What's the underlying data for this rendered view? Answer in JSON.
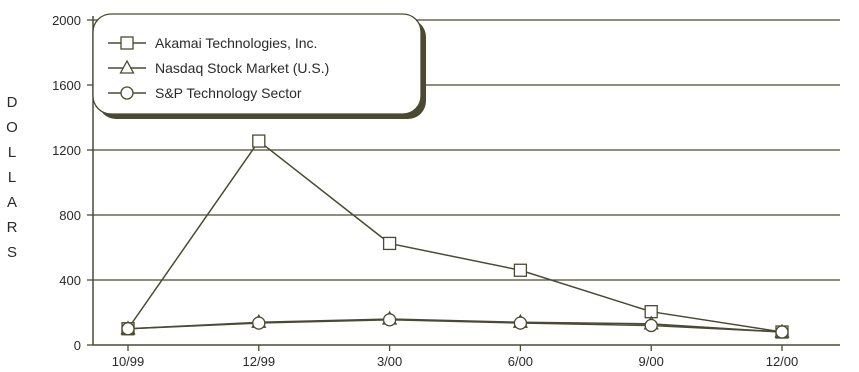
{
  "chart_data": {
    "type": "line",
    "title": "",
    "xlabel": "",
    "ylabel": "DOLLARS",
    "categories": [
      "10/99",
      "12/99",
      "3/00",
      "6/00",
      "9/00",
      "12/00"
    ],
    "ylim": [
      0,
      2000
    ],
    "yticks": [
      "0",
      "400",
      "800",
      "1200",
      "1600",
      "2000"
    ],
    "grid": "horizontal",
    "legend_position": "top-left",
    "series": [
      {
        "name": "Akamai Technologies, Inc.",
        "marker": "square",
        "values": [
          100,
          1255,
          625,
          460,
          205,
          80
        ]
      },
      {
        "name": "Nasdaq Stock Market (U.S.)",
        "marker": "triangle",
        "values": [
          100,
          140,
          160,
          140,
          130,
          80
        ]
      },
      {
        "name": "S&P Technology Sector",
        "marker": "circle",
        "values": [
          100,
          135,
          155,
          135,
          120,
          80
        ]
      }
    ],
    "colors": {
      "line": "#4a4a32",
      "grid": "#4a4a32",
      "text": "#2a2a2a",
      "marker_fill": "#ffffff"
    }
  }
}
